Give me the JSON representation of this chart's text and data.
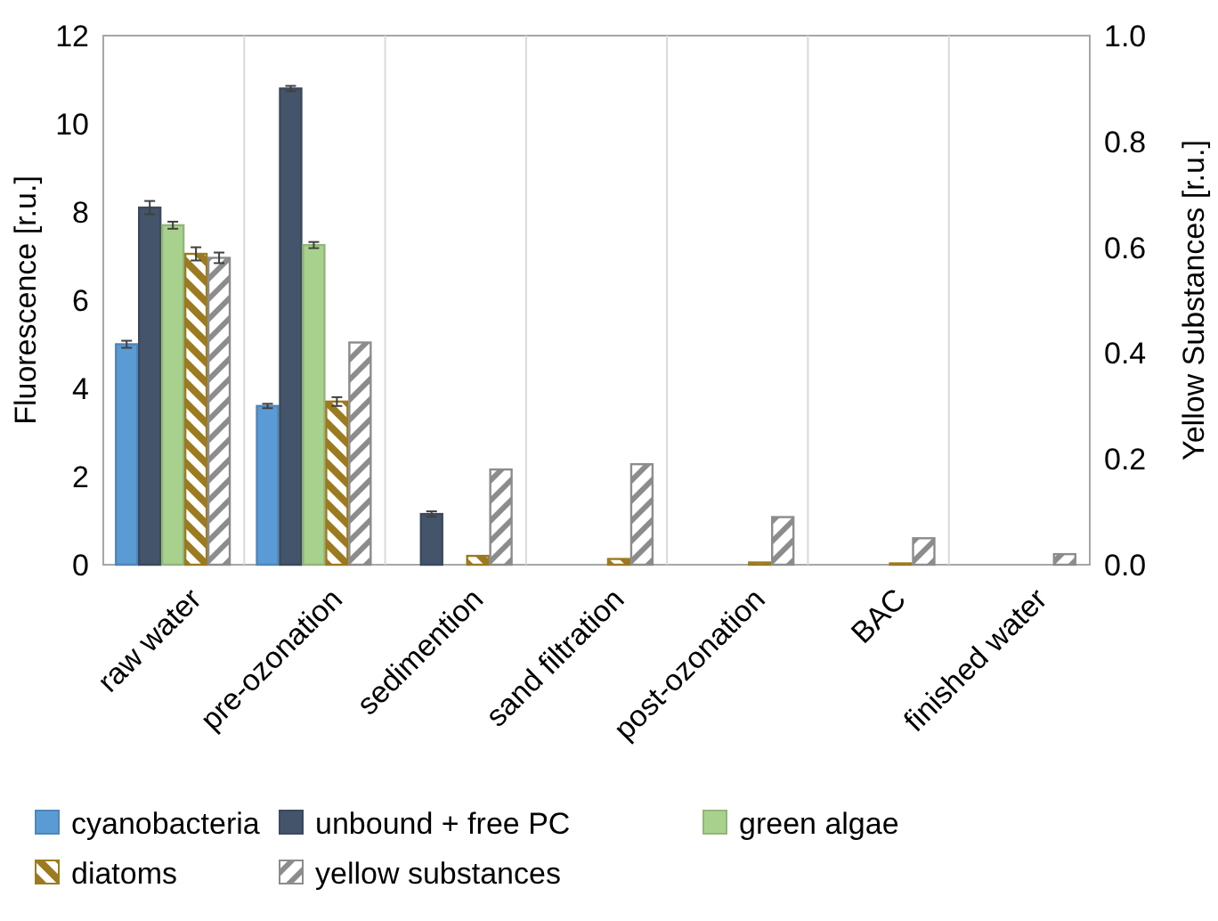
{
  "chart_data": {
    "type": "bar",
    "categories": [
      "raw water",
      "pre-ozonation",
      "sedimention",
      "sand filtration",
      "post-ozonation",
      "BAC",
      "finished water"
    ],
    "ylabel": "Fluorescence [r.u.]",
    "y2label": "Yellow Substances [r.u.]",
    "ylim": [
      0,
      12
    ],
    "yticks": [
      0,
      2,
      4,
      6,
      8,
      10,
      12
    ],
    "y2lim": [
      0,
      1
    ],
    "y2ticks": [
      {
        "value": 0,
        "label": "0.0"
      },
      {
        "value": 0.2,
        "label": "0.2"
      },
      {
        "value": 0.4,
        "label": "0.4"
      },
      {
        "value": 0.6,
        "label": "0.6"
      },
      {
        "value": 0.8,
        "label": "0.8"
      },
      {
        "value": 1,
        "label": "1.0"
      }
    ],
    "grid": "x",
    "legend": "bottom",
    "series": [
      {
        "name": "cyanobacteria",
        "color": "#5b9bd5",
        "values": [
          5.0,
          3.6,
          0,
          0,
          0,
          0,
          0
        ],
        "errors": [
          0.08,
          0.05,
          null,
          null,
          null,
          null,
          null
        ]
      },
      {
        "name": "unbound + free PC",
        "color": "#44546a",
        "values": [
          8.1,
          10.8,
          1.15,
          0,
          0,
          0,
          0
        ],
        "errors": [
          0.15,
          0.06,
          0.06,
          null,
          null,
          null,
          null
        ]
      },
      {
        "name": "green algae",
        "color": "#a9d18e",
        "values": [
          7.7,
          7.25,
          0,
          0,
          0,
          0,
          0
        ],
        "errors": [
          0.08,
          0.07,
          null,
          null,
          null,
          null,
          null
        ]
      },
      {
        "name": "diatoms",
        "color": "#9c7a1f",
        "values": [
          7.05,
          3.7,
          0.2,
          0.13,
          0.05,
          0.03,
          0
        ],
        "errors": [
          0.15,
          0.1,
          null,
          null,
          null,
          null,
          null
        ]
      },
      {
        "name": "yellow substances",
        "color": "#8c8c8c",
        "axis": "y2",
        "values": [
          0.58,
          0.42,
          0.18,
          0.19,
          0.09,
          0.05,
          0.02
        ],
        "errors": [
          0.01,
          null,
          null,
          null,
          null,
          null,
          null
        ]
      }
    ]
  }
}
